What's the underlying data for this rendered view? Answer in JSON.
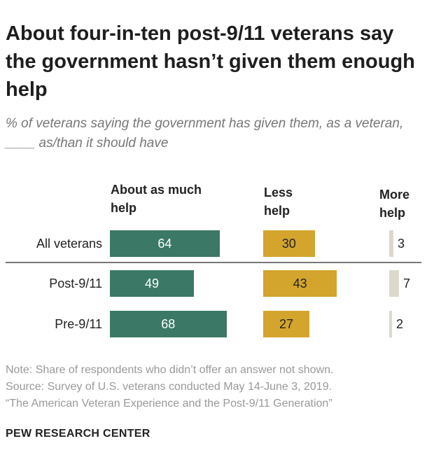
{
  "title": "About four-in-ten post-9/11 veterans say the government hasn’t given them enough help",
  "subtitle": "% of veterans saying the government has given them, as a veteran, ____ as/than it should have",
  "chart_data": {
    "type": "bar",
    "categories": [
      "All veterans",
      "Post-9/11",
      "Pre-9/11"
    ],
    "series": [
      {
        "name": "About as much help",
        "values": [
          64,
          49,
          68
        ],
        "color": "#3b7866"
      },
      {
        "name": "Less help",
        "values": [
          30,
          43,
          27
        ],
        "color": "#d3a52c"
      },
      {
        "name": "More help",
        "values": [
          3,
          7,
          2
        ],
        "color": "#dcd8cc"
      }
    ],
    "column_headers": [
      "About as much help",
      "Less help",
      "More help"
    ]
  },
  "notes": [
    "Note: Share of respondents who didn’t offer an answer not shown.",
    "Source: Survey of U.S. veterans conducted May 14-June 3, 2019.",
    "“The American Veteran Experience and the Post-9/11 Generation”"
  ],
  "brand": "PEW RESEARCH CENTER"
}
